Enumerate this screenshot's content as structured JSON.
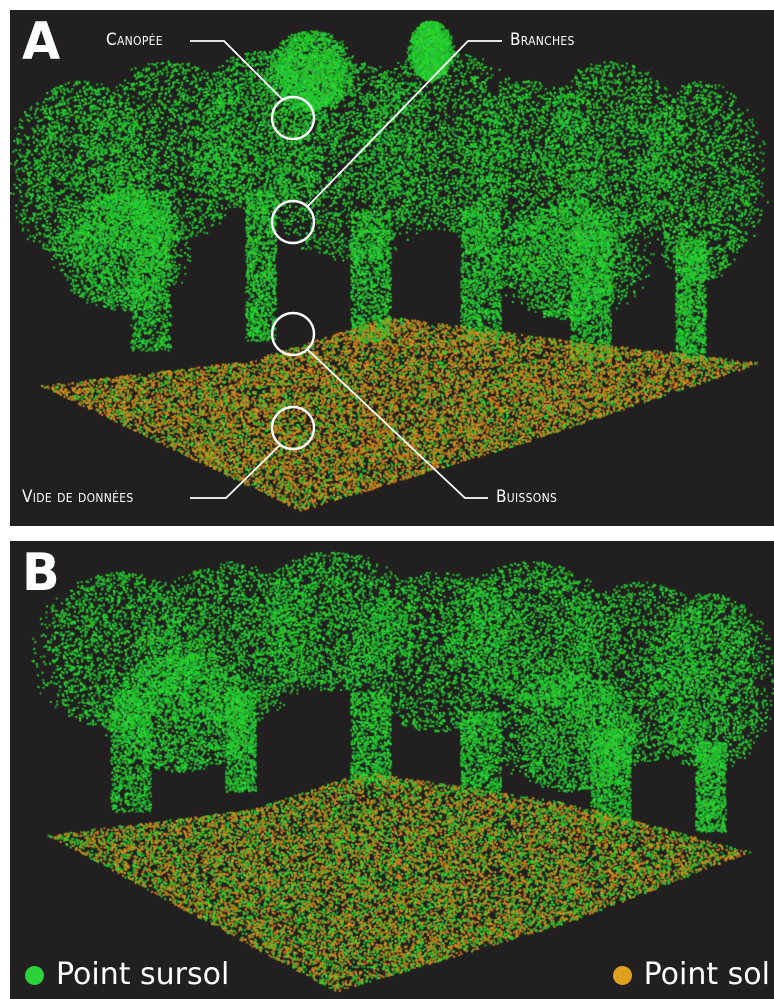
{
  "panels": [
    {
      "letter": "A",
      "annotations": {
        "canopy": "Canopée",
        "branches": "Branches",
        "bushes": "Buissons",
        "data_gap": "Vide de données"
      }
    },
    {
      "letter": "B"
    }
  ],
  "legend": {
    "above_ground": {
      "label": "Point sursol",
      "color": "#2bd23a"
    },
    "ground": {
      "label": "Point sol",
      "color": "#e0a21e"
    }
  },
  "colors": {
    "background": "#211f1f",
    "vegetation_green": "#2bd23a",
    "ground_orange": "#c98a1c",
    "annotation_lines": "#ffffff"
  }
}
